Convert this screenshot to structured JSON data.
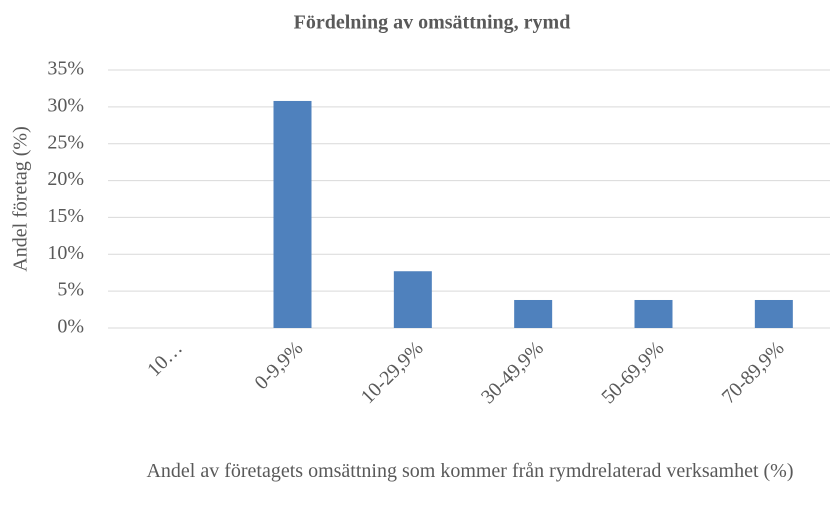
{
  "chart_data": {
    "type": "bar",
    "title": "Fördelning av omsättning, rymd",
    "xlabel": "Andel av företagets omsättning som kommer från rymdrelaterad verksamhet (%)",
    "ylabel": "Andel företag (%)",
    "categories": [
      "10…",
      "0-9,9%",
      "10-29,9%",
      "30-49,9%",
      "50-69,9%",
      "70-89,9%"
    ],
    "values": [
      0,
      30.8,
      7.7,
      3.8,
      3.8,
      3.8
    ],
    "color": "#4f81bd",
    "ylim": [
      0,
      35
    ],
    "yticks": [
      {
        "value": 0,
        "label": "0%"
      },
      {
        "value": 5,
        "label": "5%"
      },
      {
        "value": 10,
        "label": "10%"
      },
      {
        "value": 15,
        "label": "15%"
      },
      {
        "value": 20,
        "label": "20%"
      },
      {
        "value": 25,
        "label": "25%"
      },
      {
        "value": 30,
        "label": "30%"
      },
      {
        "value": 35,
        "label": "35%"
      }
    ],
    "grid": true
  }
}
